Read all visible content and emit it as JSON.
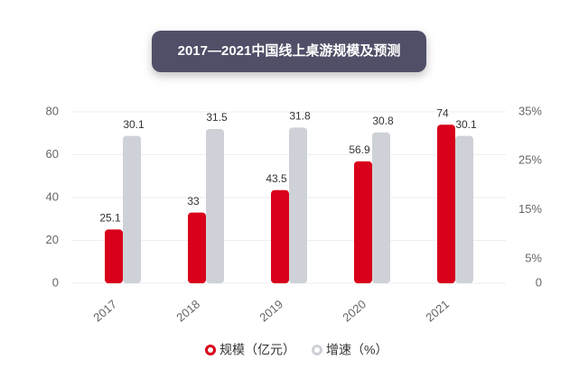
{
  "chart_data": {
    "type": "bar",
    "title": "2017—2021中国线上桌游规模及预测",
    "categories": [
      "2017",
      "2018",
      "2019",
      "2020",
      "2021"
    ],
    "series": [
      {
        "name": "规模（亿元）",
        "color": "#d9001b",
        "values": [
          25.1,
          33,
          43.5,
          56.9,
          74
        ]
      },
      {
        "name": "增速（%）",
        "color": "#cfd1d8",
        "axis": "y2",
        "values": [
          30.1,
          31.5,
          31.8,
          30.8,
          30.1
        ]
      }
    ],
    "ylim": [
      0,
      80
    ],
    "yticks": [
      0,
      20,
      40,
      60,
      80
    ],
    "y2lim": [
      0,
      35
    ],
    "y2ticks": [
      0,
      {
        "value": 5,
        "label": "5%"
      },
      {
        "value": 15,
        "label": "15%"
      },
      {
        "value": 25,
        "label": "25%"
      },
      {
        "value": 35,
        "label": "35%"
      }
    ],
    "grid": true
  }
}
